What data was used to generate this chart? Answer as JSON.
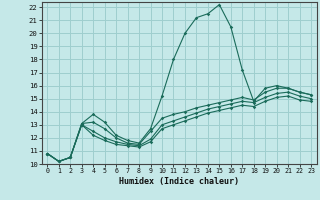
{
  "xlabel": "Humidex (Indice chaleur)",
  "background_color": "#c5e8e8",
  "grid_color": "#9ecece",
  "line_color": "#1a6b5a",
  "xlim": [
    -0.5,
    23.5
  ],
  "ylim": [
    10,
    22.4
  ],
  "xticks": [
    0,
    1,
    2,
    3,
    4,
    5,
    6,
    7,
    8,
    9,
    10,
    11,
    12,
    13,
    14,
    15,
    16,
    17,
    18,
    19,
    20,
    21,
    22,
    23
  ],
  "yticks": [
    10,
    11,
    12,
    13,
    14,
    15,
    16,
    17,
    18,
    19,
    20,
    21,
    22
  ],
  "lines": [
    {
      "x": [
        0,
        1,
        2,
        3,
        4,
        5,
        6,
        7,
        8,
        9,
        10,
        11,
        12,
        13,
        14,
        15,
        16,
        17,
        18,
        19,
        20,
        21,
        22,
        23
      ],
      "y": [
        10.8,
        10.2,
        10.5,
        13.1,
        13.8,
        13.2,
        12.2,
        11.8,
        11.6,
        12.7,
        15.2,
        18.0,
        20.0,
        21.2,
        21.5,
        22.2,
        20.5,
        17.2,
        14.8,
        15.8,
        16.0,
        15.8,
        15.5,
        15.3
      ]
    },
    {
      "x": [
        0,
        1,
        2,
        3,
        4,
        5,
        6,
        7,
        8,
        9,
        10,
        11,
        12,
        13,
        14,
        15,
        16,
        17,
        18,
        19,
        20,
        21,
        22,
        23
      ],
      "y": [
        10.8,
        10.2,
        10.5,
        13.1,
        13.2,
        12.7,
        12.0,
        11.6,
        11.5,
        12.5,
        13.5,
        13.8,
        14.0,
        14.3,
        14.5,
        14.7,
        14.9,
        15.1,
        14.9,
        15.5,
        15.8,
        15.8,
        15.5,
        15.3
      ]
    },
    {
      "x": [
        0,
        1,
        2,
        3,
        4,
        5,
        6,
        7,
        8,
        9,
        10,
        11,
        12,
        13,
        14,
        15,
        16,
        17,
        18,
        19,
        20,
        21,
        22,
        23
      ],
      "y": [
        10.8,
        10.2,
        10.5,
        13.0,
        12.5,
        12.0,
        11.7,
        11.5,
        11.4,
        11.9,
        13.0,
        13.3,
        13.6,
        13.9,
        14.2,
        14.4,
        14.6,
        14.8,
        14.7,
        15.1,
        15.4,
        15.5,
        15.2,
        15.0
      ]
    },
    {
      "x": [
        0,
        1,
        2,
        3,
        4,
        5,
        6,
        7,
        8,
        9,
        10,
        11,
        12,
        13,
        14,
        15,
        16,
        17,
        18,
        19,
        20,
        21,
        22,
        23
      ],
      "y": [
        10.8,
        10.2,
        10.5,
        13.0,
        12.2,
        11.8,
        11.5,
        11.4,
        11.3,
        11.7,
        12.7,
        13.0,
        13.3,
        13.6,
        13.9,
        14.1,
        14.3,
        14.5,
        14.4,
        14.8,
        15.1,
        15.2,
        14.9,
        14.8
      ]
    }
  ]
}
